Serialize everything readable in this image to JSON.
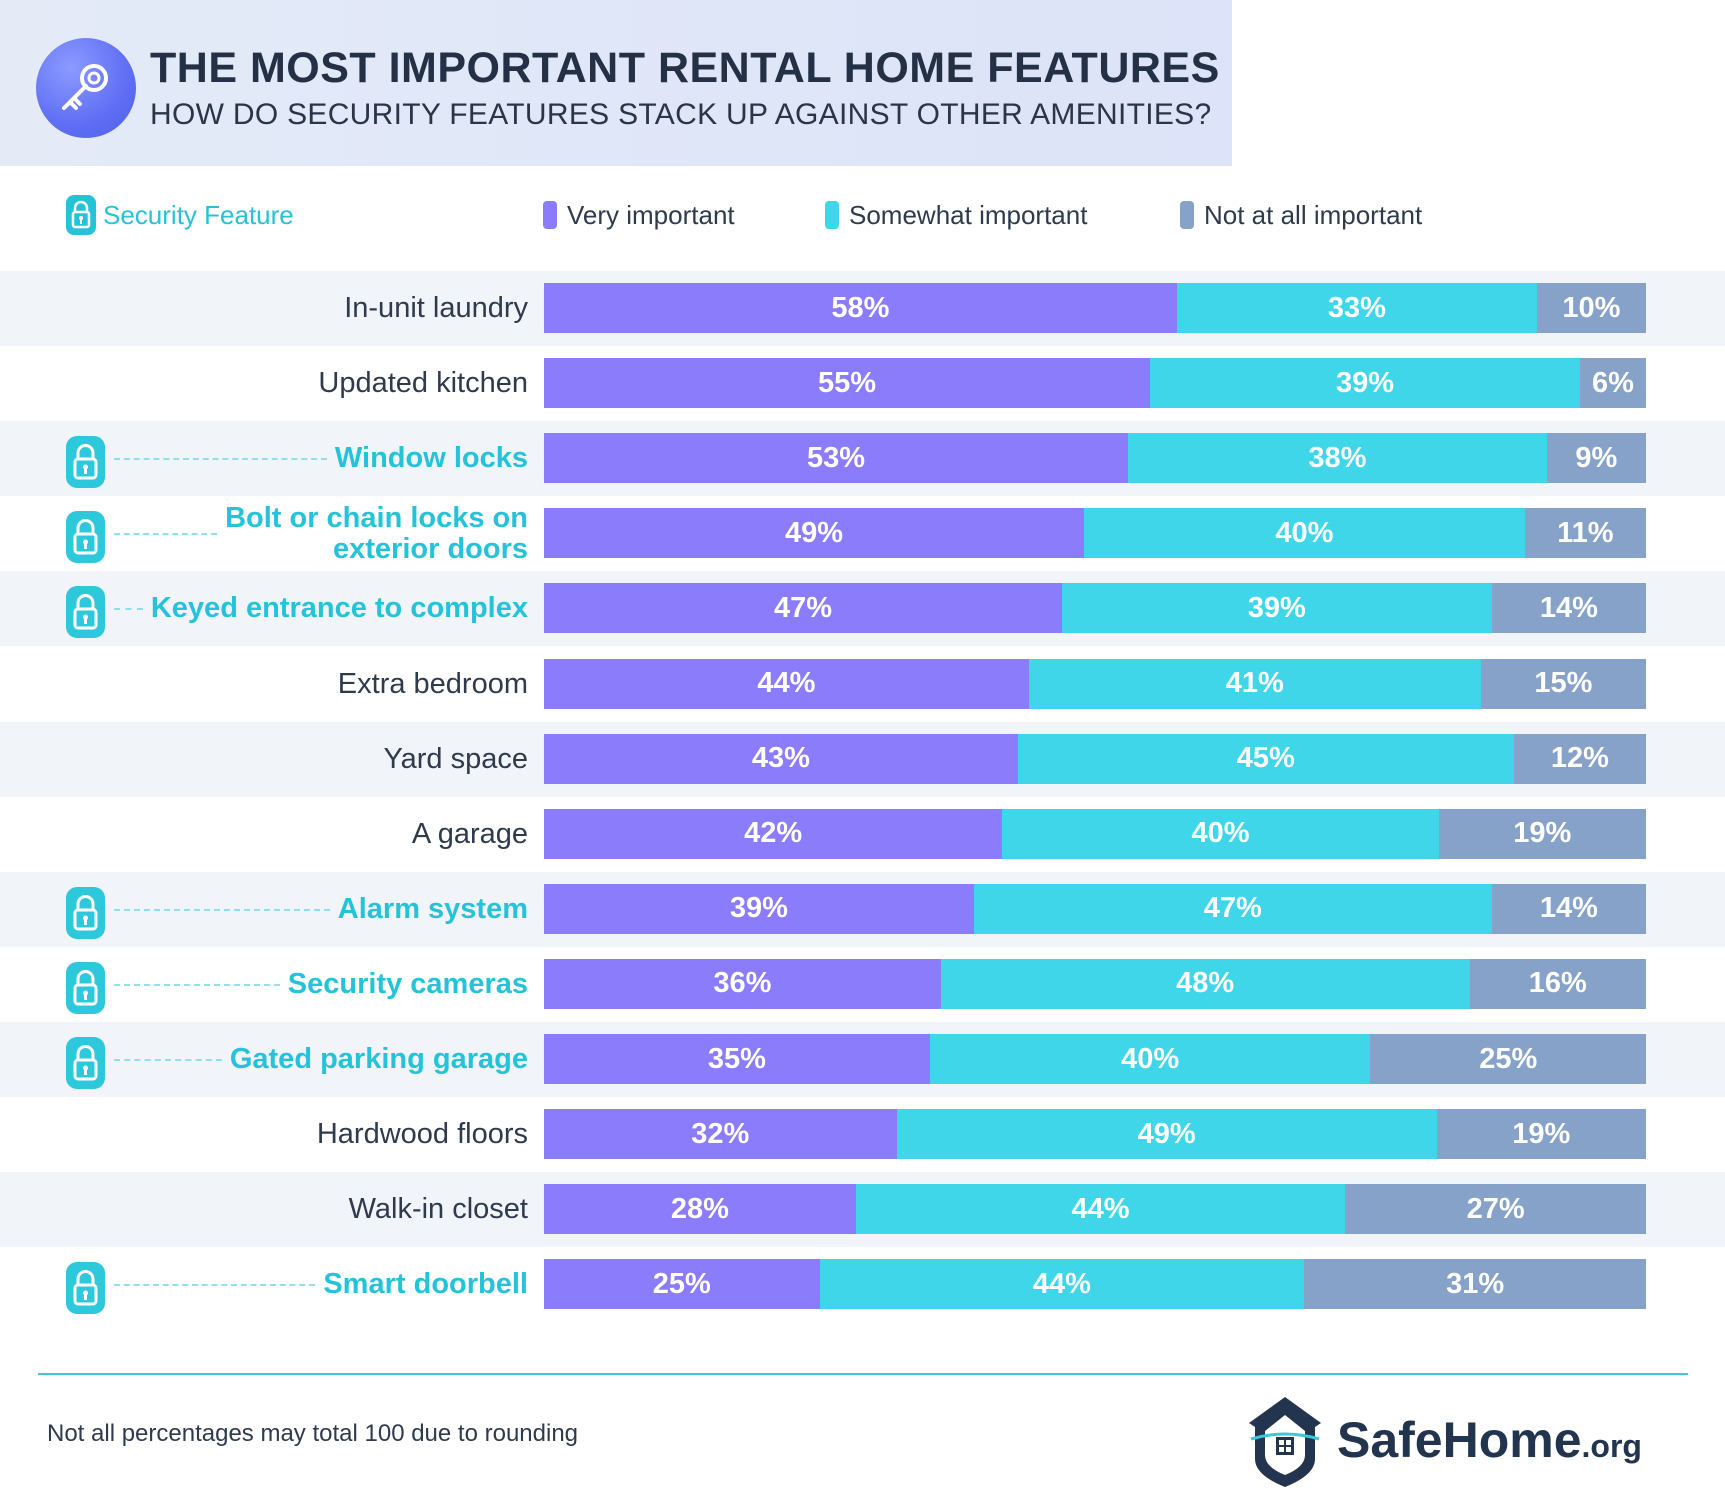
{
  "header": {
    "title": "THE MOST IMPORTANT RENTAL HOME FEATURES",
    "subtitle": "HOW DO SECURITY FEATURES STACK UP AGAINST OTHER AMENITIES?",
    "icon": "key-icon"
  },
  "legend": {
    "security_feature": "Security Feature",
    "very": "Very important",
    "somewhat": "Somewhat important",
    "not": "Not at all important"
  },
  "colors": {
    "very": "#8a7cfb",
    "somewhat": "#40d6ea",
    "not": "#86a2c8",
    "security_text": "#25c3d9",
    "row_shade": "#f1f4f9"
  },
  "chart_data": {
    "type": "bar",
    "orientation": "horizontal",
    "stacked": true,
    "categories": [
      "In-unit laundry",
      "Updated kitchen",
      "Window locks",
      "Bolt or chain locks on exterior doors",
      "Keyed entrance to complex",
      "Extra bedroom",
      "Yard space",
      "A garage",
      "Alarm system",
      "Security cameras",
      "Gated parking garage",
      "Hardwood floors",
      "Walk-in closet",
      "Smart doorbell"
    ],
    "security_feature": [
      false,
      false,
      true,
      true,
      true,
      false,
      false,
      false,
      true,
      true,
      true,
      false,
      false,
      true
    ],
    "series": [
      {
        "name": "Very important",
        "values": [
          58,
          55,
          53,
          49,
          47,
          44,
          43,
          42,
          39,
          36,
          35,
          32,
          28,
          25
        ]
      },
      {
        "name": "Somewhat important",
        "values": [
          33,
          39,
          38,
          40,
          39,
          41,
          45,
          40,
          47,
          48,
          40,
          49,
          44,
          44
        ]
      },
      {
        "name": "Not at all important",
        "values": [
          10,
          6,
          9,
          11,
          14,
          15,
          12,
          19,
          14,
          16,
          25,
          19,
          27,
          31
        ]
      }
    ],
    "value_suffix": "%"
  },
  "footer": {
    "note": "Not all percentages may total 100 due to rounding",
    "brand": "SafeHome",
    "brand_suffix": ".org",
    "brand_icon": "house-shield-icon"
  }
}
